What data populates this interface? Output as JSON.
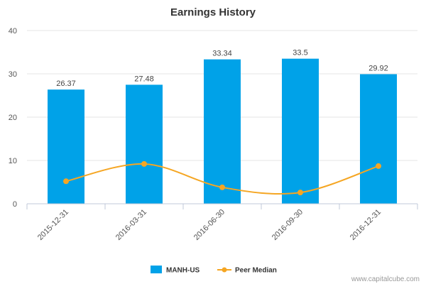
{
  "chart_data": {
    "type": "bar",
    "title": "Earnings History",
    "categories": [
      "2015-12-31",
      "2016-03-31",
      "2016-06-30",
      "2016-09-30",
      "2016-12-31"
    ],
    "series": [
      {
        "name": "MANH-US",
        "type": "bar",
        "values": [
          26.37,
          27.48,
          33.34,
          33.5,
          29.92
        ],
        "labels": [
          "26.37",
          "27.48",
          "33.34",
          "33.5",
          "29.92"
        ],
        "color": "#00a2e8"
      },
      {
        "name": "Peer Median",
        "type": "line",
        "values": [
          5.2,
          9.2,
          3.8,
          2.6,
          8.7
        ],
        "color": "#f5a623"
      }
    ],
    "ylim": [
      0,
      40
    ],
    "yticks": [
      0,
      10,
      20,
      30,
      40
    ],
    "xlabel": "",
    "ylabel": "",
    "grid": true,
    "legend": "bottom-center"
  },
  "credit": "www.capitalcube.com"
}
